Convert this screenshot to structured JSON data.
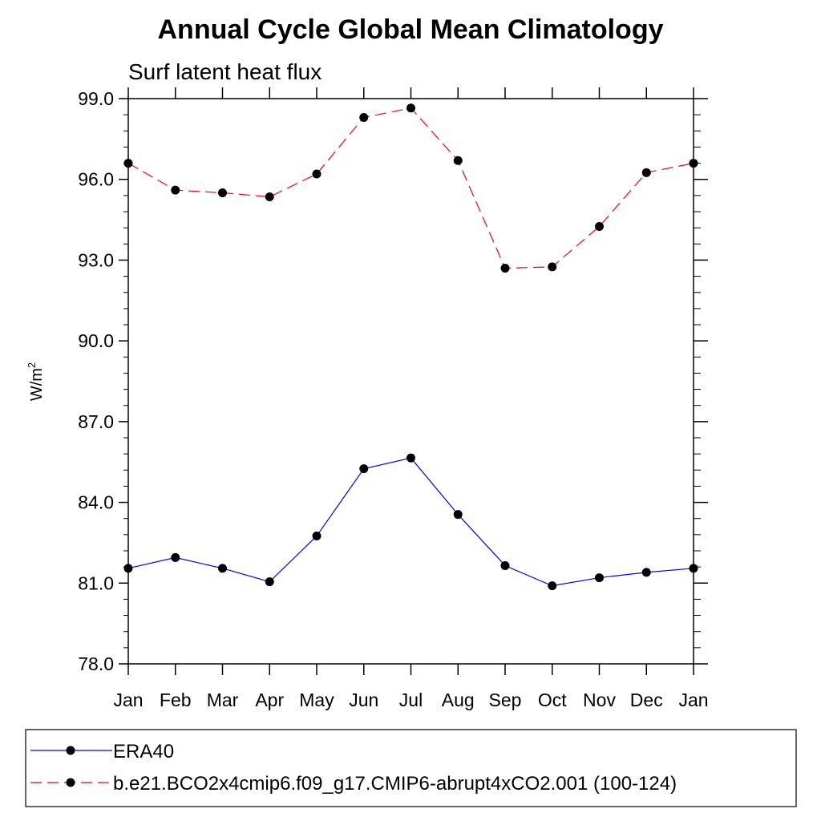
{
  "chart_data": {
    "type": "line",
    "title": "Annual Cycle Global Mean Climatology",
    "subtitle": "Surf latent heat flux",
    "ylabel": "W/m",
    "ylabel_superscript": "2",
    "categories": [
      "Jan",
      "Feb",
      "Mar",
      "Apr",
      "May",
      "Jun",
      "Jul",
      "Aug",
      "Sep",
      "Oct",
      "Nov",
      "Dec",
      "Jan"
    ],
    "ylim": [
      78.0,
      99.0
    ],
    "yticks": [
      "78.0",
      "81.0",
      "84.0",
      "87.0",
      "90.0",
      "93.0",
      "96.0",
      "99.0"
    ],
    "grid": false,
    "legend_position": "bottom",
    "series": [
      {
        "name": "ERA40",
        "color": "#0000ff",
        "dash": "solid",
        "values": [
          81.55,
          81.95,
          81.55,
          81.05,
          82.75,
          85.25,
          85.65,
          83.55,
          81.65,
          80.9,
          81.2,
          81.4,
          81.55
        ]
      },
      {
        "name": "b.e21.BCO2x4cmip6.f09_g17.CMIP6-abrupt4xCO2.001 (100-124)",
        "color": "#ff0000",
        "dash": "dashed",
        "values": [
          96.6,
          95.6,
          95.5,
          95.35,
          96.2,
          98.3,
          98.65,
          96.7,
          92.7,
          92.75,
          94.25,
          96.25,
          96.6
        ]
      }
    ]
  }
}
